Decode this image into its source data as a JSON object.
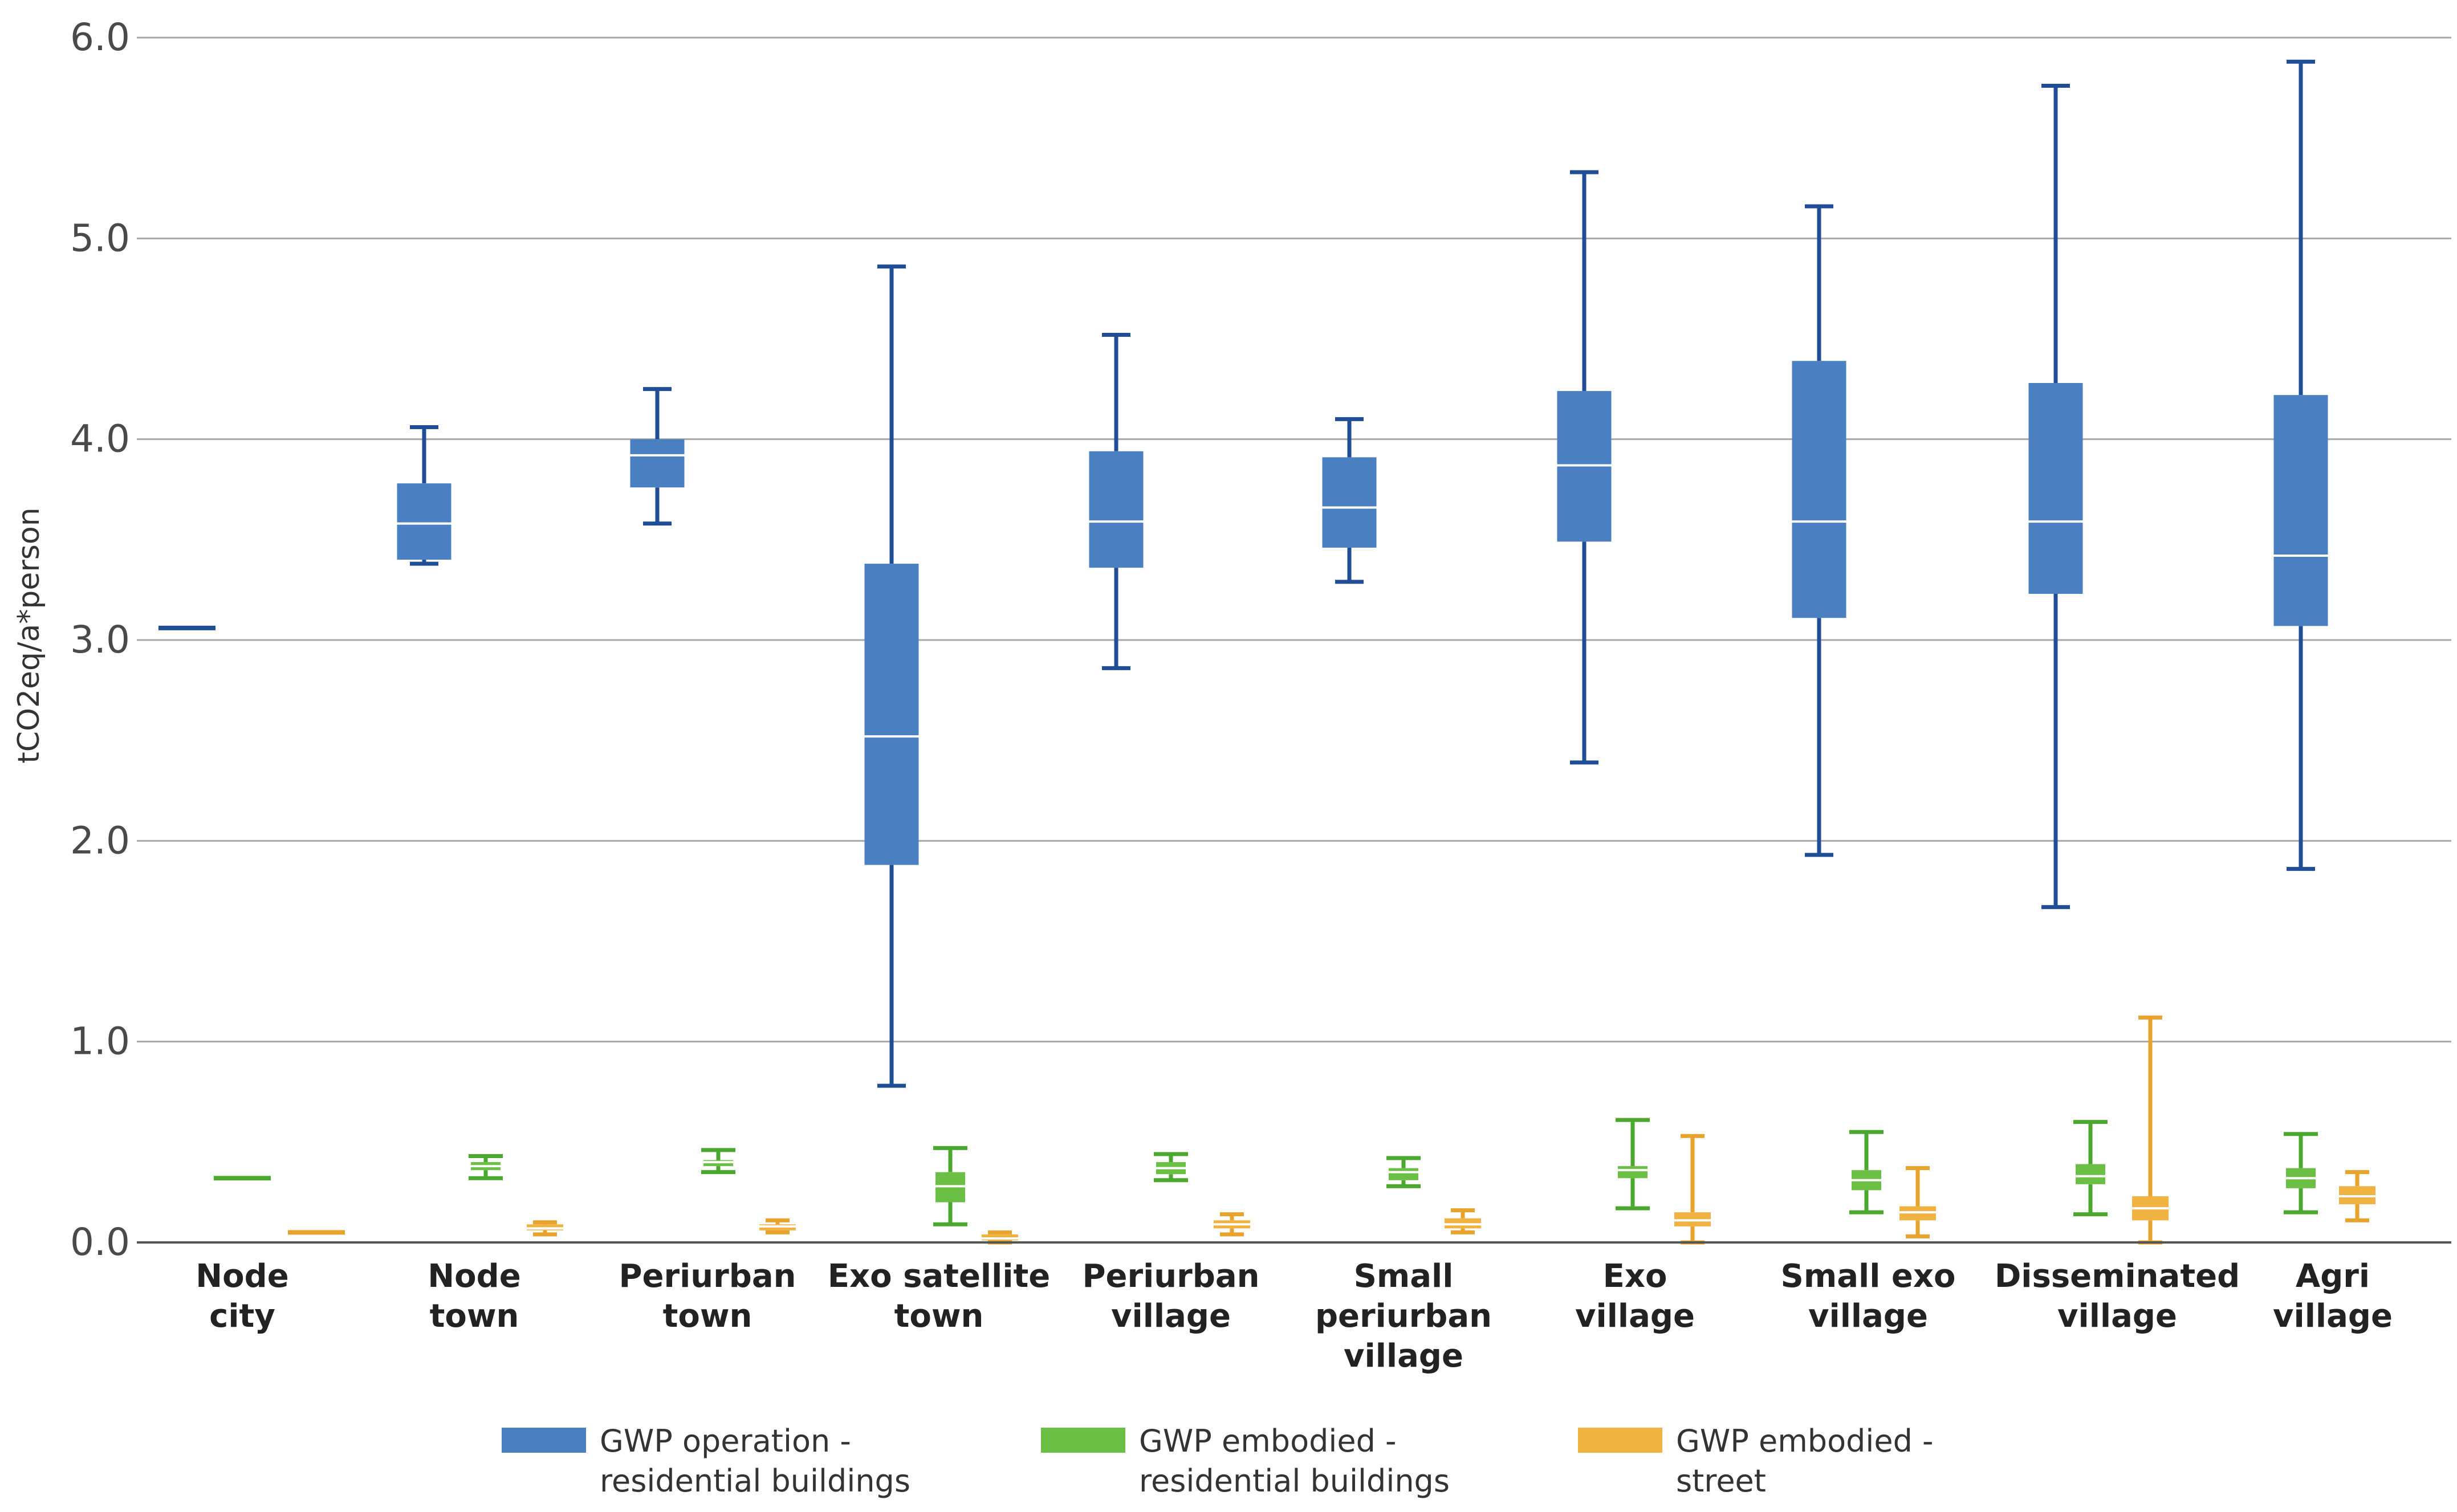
{
  "chart_data": {
    "type": "box",
    "title": "",
    "ylabel": "tCO2eq/a*person",
    "ylim": [
      0,
      6
    ],
    "yticks": [
      "0.0",
      "1.0",
      "2.0",
      "3.0",
      "4.0",
      "5.0",
      "6.0"
    ],
    "grid": true,
    "legend_position": "bottom",
    "categories": [
      {
        "lines": [
          "Node",
          "city"
        ]
      },
      {
        "lines": [
          "Node",
          "town"
        ]
      },
      {
        "lines": [
          "Periurban",
          "town"
        ]
      },
      {
        "lines": [
          "Exo satellite",
          "town"
        ]
      },
      {
        "lines": [
          "Periurban",
          "village"
        ]
      },
      {
        "lines": [
          "Small",
          "periurban",
          "village"
        ]
      },
      {
        "lines": [
          "Exo",
          "village"
        ]
      },
      {
        "lines": [
          "Small exo",
          "village"
        ]
      },
      {
        "lines": [
          "Disseminated",
          "village"
        ]
      },
      {
        "lines": [
          "Agri",
          "village"
        ]
      }
    ],
    "series": [
      {
        "name": "GWP operation - residential buildings",
        "legend_lines": [
          "GWP operation -",
          "residential buildings"
        ],
        "color": "#4a7fc1",
        "whisker_color": "#1f4e96",
        "boxes": [
          {
            "min": 3.06,
            "q1": 3.06,
            "median": 3.06,
            "q3": 3.06,
            "max": 3.06
          },
          {
            "min": 3.38,
            "q1": 3.4,
            "median": 3.58,
            "q3": 3.78,
            "max": 4.06
          },
          {
            "min": 3.58,
            "q1": 3.76,
            "median": 3.92,
            "q3": 4.0,
            "max": 4.25
          },
          {
            "min": 0.78,
            "q1": 1.88,
            "median": 2.52,
            "q3": 3.38,
            "max": 4.86
          },
          {
            "min": 2.86,
            "q1": 3.36,
            "median": 3.59,
            "q3": 3.94,
            "max": 4.52
          },
          {
            "min": 3.29,
            "q1": 3.46,
            "median": 3.66,
            "q3": 3.91,
            "max": 4.1
          },
          {
            "min": 2.39,
            "q1": 3.49,
            "median": 3.87,
            "q3": 4.24,
            "max": 5.33
          },
          {
            "min": 1.93,
            "q1": 3.11,
            "median": 3.59,
            "q3": 4.39,
            "max": 5.16
          },
          {
            "min": 1.67,
            "q1": 3.23,
            "median": 3.59,
            "q3": 4.28,
            "max": 5.76
          },
          {
            "min": 1.86,
            "q1": 3.07,
            "median": 3.42,
            "q3": 4.22,
            "max": 5.88
          }
        ]
      },
      {
        "name": "GWP embodied - residential buildings",
        "legend_lines": [
          "GWP embodied -",
          "residential buildings"
        ],
        "color": "#6cbf45",
        "whisker_color": "#4aa82e",
        "boxes": [
          {
            "min": 0.32,
            "q1": 0.32,
            "median": 0.32,
            "q3": 0.32,
            "max": 0.32
          },
          {
            "min": 0.32,
            "q1": 0.36,
            "median": 0.38,
            "q3": 0.4,
            "max": 0.43
          },
          {
            "min": 0.35,
            "q1": 0.38,
            "median": 0.4,
            "q3": 0.41,
            "max": 0.46
          },
          {
            "min": 0.09,
            "q1": 0.2,
            "median": 0.28,
            "q3": 0.35,
            "max": 0.47
          },
          {
            "min": 0.31,
            "q1": 0.34,
            "median": 0.37,
            "q3": 0.4,
            "max": 0.44
          },
          {
            "min": 0.28,
            "q1": 0.31,
            "median": 0.35,
            "q3": 0.37,
            "max": 0.42
          },
          {
            "min": 0.17,
            "q1": 0.32,
            "median": 0.36,
            "q3": 0.38,
            "max": 0.61
          },
          {
            "min": 0.15,
            "q1": 0.26,
            "median": 0.31,
            "q3": 0.36,
            "max": 0.55
          },
          {
            "min": 0.14,
            "q1": 0.29,
            "median": 0.33,
            "q3": 0.39,
            "max": 0.6
          },
          {
            "min": 0.15,
            "q1": 0.27,
            "median": 0.32,
            "q3": 0.37,
            "max": 0.54
          }
        ]
      },
      {
        "name": "GWP embodied - street",
        "legend_lines": [
          "GWP embodied -",
          "street"
        ],
        "color": "#f0b240",
        "whisker_color": "#e7a32c",
        "boxes": [
          {
            "min": 0.05,
            "q1": 0.05,
            "median": 0.05,
            "q3": 0.05,
            "max": 0.05
          },
          {
            "min": 0.04,
            "q1": 0.06,
            "median": 0.07,
            "q3": 0.09,
            "max": 0.1
          },
          {
            "min": 0.05,
            "q1": 0.06,
            "median": 0.08,
            "q3": 0.09,
            "max": 0.11
          },
          {
            "min": 0.0,
            "q1": 0.01,
            "median": 0.02,
            "q3": 0.04,
            "max": 0.05
          },
          {
            "min": 0.04,
            "q1": 0.07,
            "median": 0.09,
            "q3": 0.11,
            "max": 0.14
          },
          {
            "min": 0.05,
            "q1": 0.07,
            "median": 0.09,
            "q3": 0.12,
            "max": 0.16
          },
          {
            "min": 0.0,
            "q1": 0.08,
            "median": 0.11,
            "q3": 0.15,
            "max": 0.53
          },
          {
            "min": 0.03,
            "q1": 0.11,
            "median": 0.15,
            "q3": 0.18,
            "max": 0.37
          },
          {
            "min": 0.0,
            "q1": 0.11,
            "median": 0.17,
            "q3": 0.23,
            "max": 1.12
          },
          {
            "min": 0.11,
            "q1": 0.19,
            "median": 0.23,
            "q3": 0.28,
            "max": 0.35
          }
        ]
      }
    ]
  }
}
